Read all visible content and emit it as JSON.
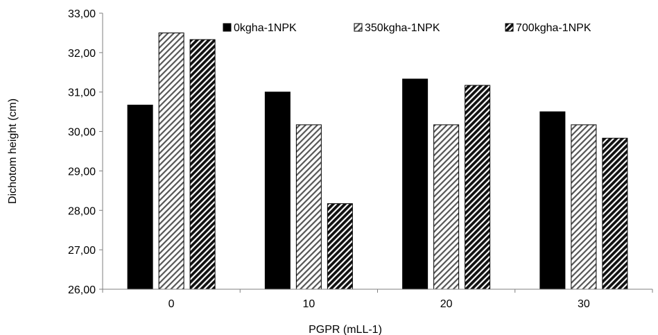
{
  "chart_data": {
    "type": "bar",
    "title": "",
    "xlabel": "PGPR (mLL-1)",
    "ylabel": "Dichotom height (cm)",
    "categories": [
      "0",
      "10",
      "20",
      "30"
    ],
    "ylim": [
      26,
      33
    ],
    "yticks": [
      "26,00",
      "27,00",
      "28,00",
      "29,00",
      "30,00",
      "31,00",
      "32,00",
      "33,00"
    ],
    "grid": false,
    "legend_position": "top",
    "series": [
      {
        "name": "0kgha-1NPK",
        "pattern": "solid",
        "color": "#000000",
        "values": [
          30.67,
          31.0,
          31.33,
          30.5
        ]
      },
      {
        "name": "350kgha-1NPK",
        "pattern": "light-diagonal",
        "color": "#ffffff",
        "values": [
          32.5,
          30.17,
          30.17,
          30.17
        ]
      },
      {
        "name": "700kgha-1NPK",
        "pattern": "dark-diagonal",
        "color": "#000000",
        "values": [
          32.33,
          28.17,
          31.17,
          29.83
        ]
      }
    ]
  }
}
